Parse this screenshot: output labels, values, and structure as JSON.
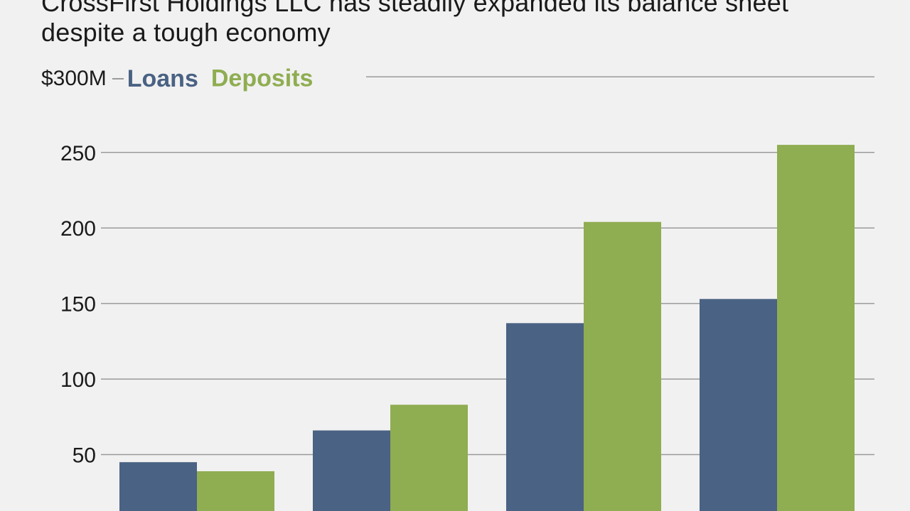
{
  "chart_data": {
    "type": "bar",
    "subtitle_lines": [
      "CrossFirst Holdings LLC has steadily expanded its balance sheet",
      "despite a tough economy"
    ],
    "ytop_label": "$300M",
    "categories": [
      "",
      "",
      "",
      ""
    ],
    "series": [
      {
        "name": "Loans",
        "color": "#4a6283",
        "values": [
          45,
          66,
          137,
          153
        ]
      },
      {
        "name": "Deposits",
        "color": "#8fad51",
        "values": [
          39,
          83,
          204,
          255
        ]
      }
    ],
    "yticks": [
      50,
      100,
      150,
      200,
      250
    ],
    "ylim": [
      0,
      300
    ],
    "grid": true,
    "legend_position": "top-left"
  }
}
